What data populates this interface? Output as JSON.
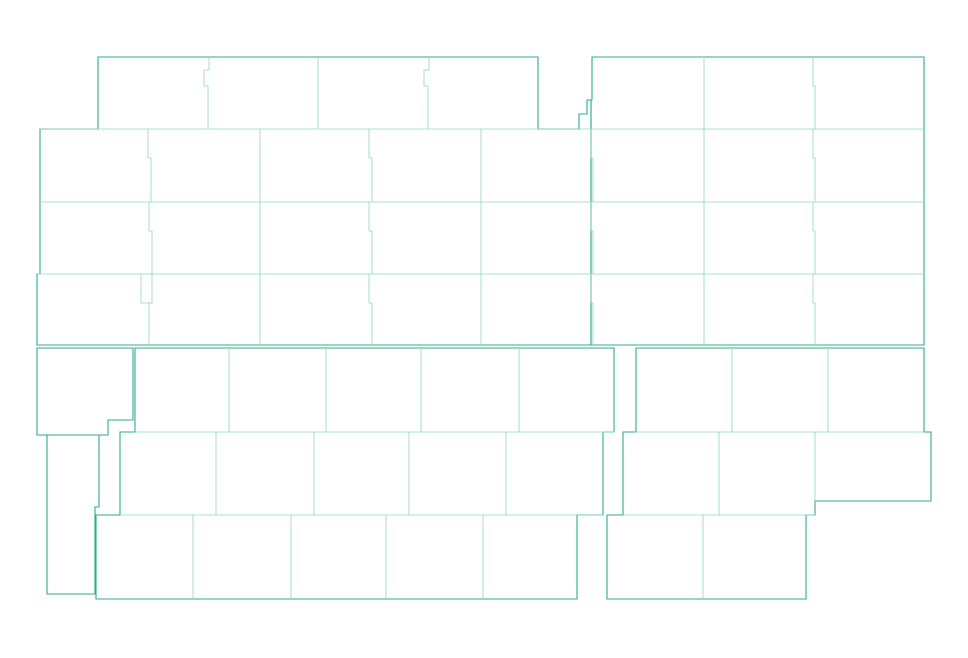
{
  "colors": {
    "background": "#ffffff",
    "block_outline": "#2fae8f",
    "lot_line": "#8fd6c2"
  }
}
